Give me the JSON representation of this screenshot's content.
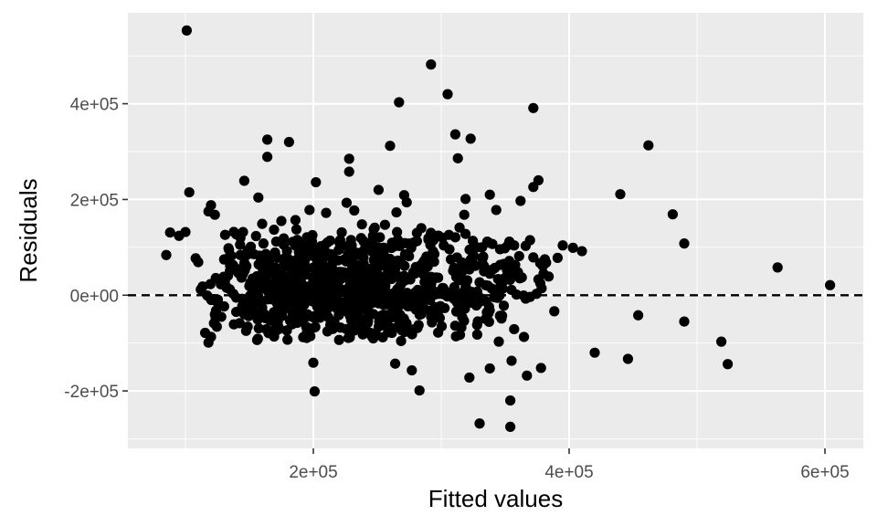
{
  "chart_data": {
    "type": "scatter",
    "title": "",
    "xlabel": "Fitted values",
    "ylabel": "Residuals",
    "xlim": [
      55000,
      630000
    ],
    "ylim": [
      -320000,
      590000
    ],
    "x_ticks": [
      200000,
      400000,
      600000
    ],
    "x_tick_labels": [
      "2e+05",
      "4e+05",
      "6e+05"
    ],
    "y_ticks": [
      -200000,
      0,
      200000,
      400000
    ],
    "y_tick_labels": [
      "-2e+05",
      "0e+00",
      "2e+05",
      "4e+05"
    ],
    "grid": true,
    "panel_background": "#ebebeb",
    "point_color": "#000000",
    "reference_line": {
      "y": 0,
      "style": "dashed",
      "color": "#000000"
    },
    "points": {
      "x": [
        101000,
        292000,
        305000,
        267000,
        372000,
        311000,
        323000,
        462000,
        164000,
        181000,
        260000,
        228000,
        313000,
        164000,
        228000,
        146000,
        202000,
        251000,
        440000,
        338000,
        103000,
        319000,
        376000,
        362000,
        372000,
        481000,
        271000,
        120000,
        273000,
        157000,
        490000,
        563000,
        604000,
        395000,
        403000,
        410000,
        391000,
        381000,
        382000,
        454000,
        490000,
        420000,
        446000,
        519000,
        524000,
        354000,
        330000,
        354000,
        283000,
        201000,
        200000,
        345000,
        367000,
        378000,
        355000,
        264000,
        277000,
        322000,
        338000,
        118000,
        120000,
        108000,
        110000,
        85000,
        88000,
        95000,
        100000,
        118000,
        123000,
        143000,
        161000,
        171000,
        186000,
        196000,
        211000,
        221000,
        230000,
        244000,
        252000,
        266000,
        275000,
        290000,
        302000,
        311000,
        328000,
        337000,
        346000,
        357000,
        366000,
        238000,
        248000,
        256000,
        281000,
        298000,
        186000,
        226000,
        160000,
        145000,
        131000,
        175000,
        210000,
        232000,
        265000,
        197000,
        318000,
        343000,
        301000,
        281000,
        336000,
        290000,
        340000,
        319000,
        306000,
        372000,
        355000,
        360000,
        380000,
        384000,
        376000,
        354000,
        342000,
        310000,
        296000,
        330000
      ],
      "y": [
        553000,
        482000,
        420000,
        403000,
        391000,
        336000,
        327000,
        313000,
        325000,
        320000,
        312000,
        285000,
        286000,
        289000,
        258000,
        239000,
        236000,
        220000,
        211000,
        210000,
        215000,
        201000,
        240000,
        197000,
        226000,
        169000,
        209000,
        188000,
        194000,
        204000,
        108000,
        58000,
        21000,
        104000,
        99000,
        92000,
        78000,
        75000,
        68000,
        -42000,
        -55000,
        -120000,
        -133000,
        -97000,
        -144000,
        -220000,
        -268000,
        -275000,
        -199000,
        -201000,
        -141000,
        -97000,
        -168000,
        -152000,
        -137000,
        -143000,
        -157000,
        -172000,
        -153000,
        -99000,
        -87000,
        77000,
        69000,
        84000,
        131000,
        124000,
        132000,
        175000,
        168000,
        120000,
        108000,
        112000,
        104000,
        98000,
        110000,
        115000,
        104000,
        102000,
        121000,
        116000,
        108000,
        119000,
        104000,
        121000,
        100000,
        110000,
        96000,
        104000,
        103000,
        148000,
        141000,
        147000,
        130000,
        124000,
        157000,
        193000,
        149000,
        132000,
        126000,
        155000,
        172000,
        177000,
        173000,
        178000,
        168000,
        178000,
        120000,
        113000,
        112000,
        116000,
        107000,
        128000,
        126000,
        79000,
        52000,
        48000,
        45000,
        39000,
        33000,
        41000,
        57000,
        57000,
        37000,
        27000
      ]
    },
    "cloud": {
      "count": 880,
      "x_range": [
        105000,
        395000
      ],
      "x_peak": 190000,
      "y_range": [
        -100000,
        150000
      ],
      "y_peak": 5000
    }
  }
}
